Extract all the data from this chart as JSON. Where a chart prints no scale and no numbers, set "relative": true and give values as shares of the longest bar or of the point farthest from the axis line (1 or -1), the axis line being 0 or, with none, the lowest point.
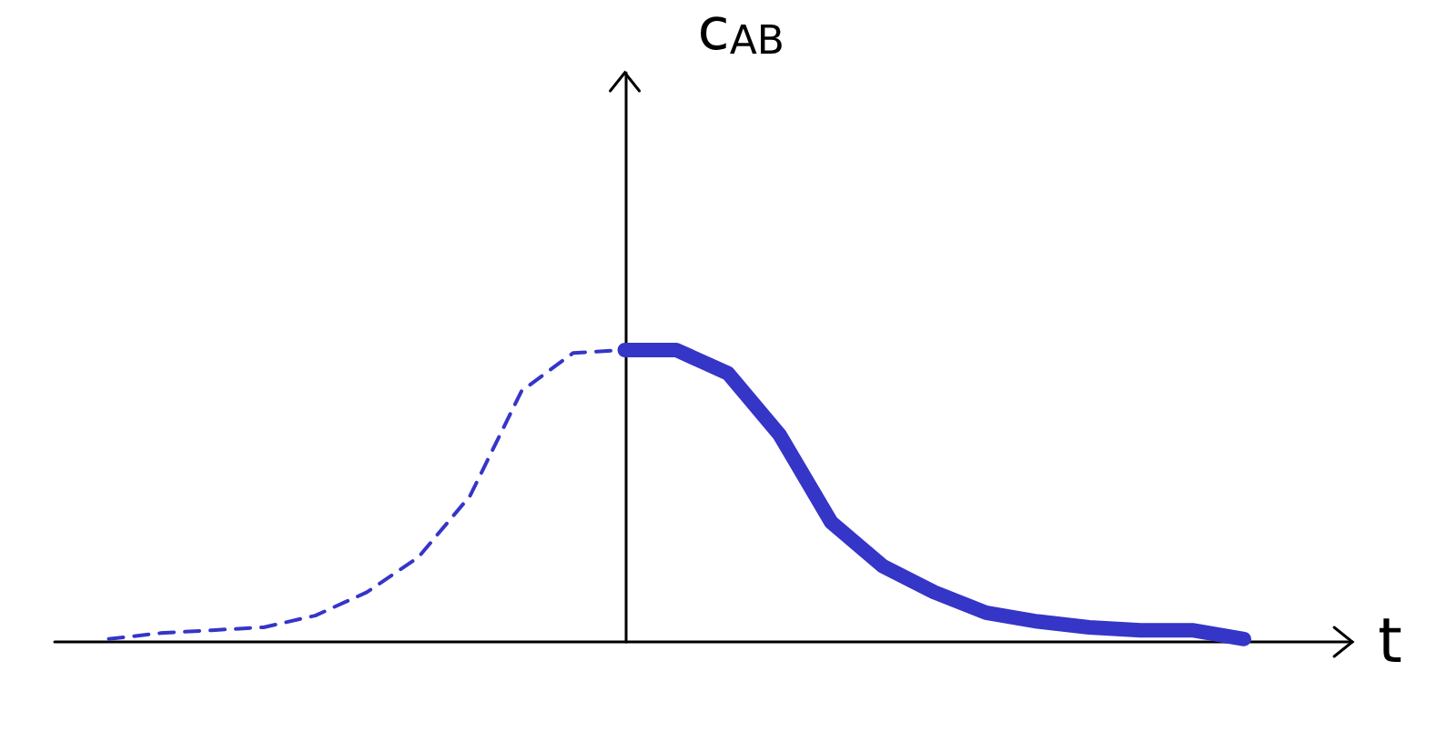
{
  "chart_data": {
    "type": "line",
    "relative": true,
    "xlabel": "t",
    "ylabel": "c$_{AB}$",
    "categories": [
      null,
      null,
      null,
      null,
      null,
      null,
      null,
      null,
      null,
      null,
      null,
      null,
      null,
      null,
      null,
      null,
      null,
      null,
      null,
      null,
      null,
      null,
      null
    ],
    "series": [
      {
        "color": "#3535c8",
        "line_style": "dashed",
        "values": [
          0.01,
          0.03,
          0.04,
          0.05,
          0.09,
          0.17,
          0.29,
          0.5,
          0.86,
          0.99,
          1,
          null,
          null,
          null,
          null,
          null,
          null,
          null,
          null,
          null,
          null,
          null,
          null
        ]
      },
      {
        "color": "#3535c8",
        "line_style": "solid",
        "values": [
          null,
          null,
          null,
          null,
          null,
          null,
          null,
          null,
          null,
          null,
          1,
          1,
          0.92,
          0.71,
          0.41,
          0.26,
          0.17,
          0.1,
          0.07,
          0.05,
          0.04,
          0.04,
          0.01
        ]
      }
    ],
    "grid": false,
    "marker": "none"
  }
}
